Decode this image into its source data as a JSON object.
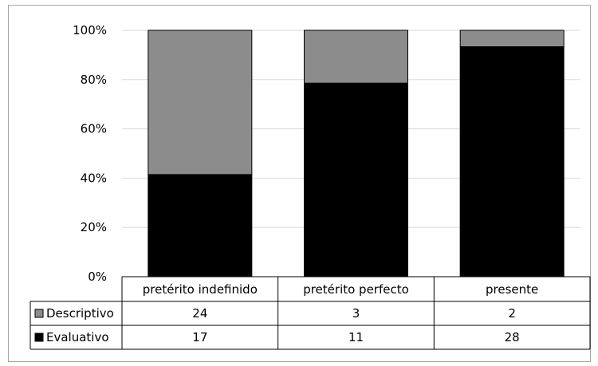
{
  "colors": {
    "descriptivo": "#8c8c8c",
    "evaluativo": "#000000",
    "gridline": "#d9d9d9",
    "table_border": "#000000",
    "frame_border": "#a6a6a6"
  },
  "chart_data": {
    "type": "bar",
    "stacked": "percent",
    "categories": [
      "pretérito indefinido",
      "pretérito perfecto",
      "presente"
    ],
    "series": [
      {
        "name": "Descriptivo",
        "values": [
          24,
          3,
          2
        ],
        "color": "#8c8c8c"
      },
      {
        "name": "Evaluativo",
        "values": [
          17,
          11,
          28
        ],
        "color": "#000000"
      }
    ],
    "y_ticks": [
      "0%",
      "20%",
      "40%",
      "60%",
      "80%",
      "100%"
    ],
    "ylim": [
      0,
      100
    ],
    "grid": true,
    "legend": "data-table-left",
    "data_table": true
  }
}
